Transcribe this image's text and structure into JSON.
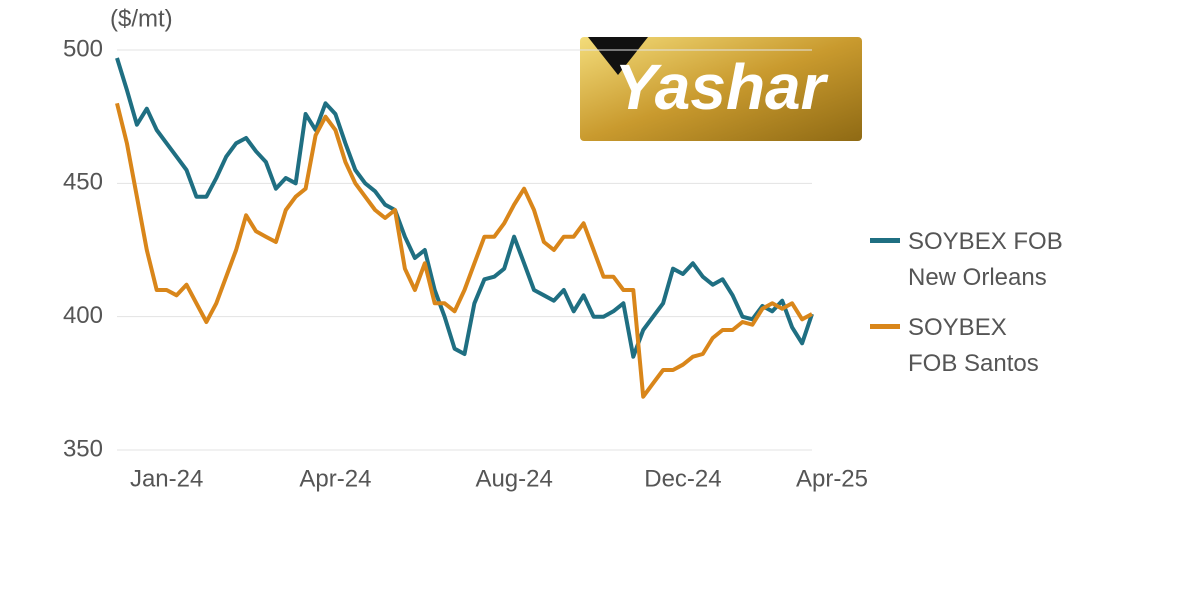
{
  "logo_text": "Yashar",
  "chart_data": {
    "type": "line",
    "y_label": "($/mt)",
    "categories": [
      null,
      null,
      null,
      null,
      null,
      "Jan-24",
      null,
      null,
      null,
      null,
      null,
      null,
      null,
      null,
      null,
      null,
      null,
      null,
      null,
      null,
      null,
      null,
      "Apr-24",
      null,
      null,
      null,
      null,
      null,
      null,
      null,
      null,
      null,
      null,
      null,
      null,
      null,
      null,
      null,
      null,
      null,
      "Aug-24",
      null,
      null,
      null,
      null,
      null,
      null,
      null,
      null,
      null,
      null,
      null,
      null,
      null,
      null,
      null,
      null,
      "Dec-24",
      null,
      null,
      null,
      null,
      null,
      null,
      null,
      null,
      null,
      null,
      null,
      null,
      "Apr-25"
    ],
    "series": [
      {
        "name": "SOYBEX FOB New Orleans",
        "color": "#1f6f82",
        "values": [
          497,
          485,
          472,
          478,
          470,
          465,
          460,
          455,
          445,
          445,
          452,
          460,
          465,
          467,
          462,
          458,
          448,
          452,
          450,
          476,
          470,
          480,
          476,
          465,
          455,
          450,
          447,
          442,
          440,
          430,
          422,
          425,
          410,
          400,
          388,
          386,
          405,
          414,
          415,
          418,
          430,
          420,
          410,
          408,
          406,
          410,
          402,
          408,
          400,
          400,
          402,
          405,
          385,
          395,
          400,
          405,
          418,
          416,
          420,
          415,
          412,
          414,
          408,
          400,
          399,
          404,
          402,
          406,
          396,
          390,
          401
        ]
      },
      {
        "name": "SOYBEX FOB Santos",
        "color": "#d9861a",
        "values": [
          480,
          465,
          445,
          425,
          410,
          410,
          408,
          412,
          405,
          398,
          405,
          415,
          425,
          438,
          432,
          430,
          428,
          440,
          445,
          448,
          468,
          475,
          470,
          458,
          450,
          445,
          440,
          437,
          440,
          418,
          410,
          420,
          405,
          405,
          402,
          410,
          420,
          430,
          430,
          435,
          442,
          448,
          440,
          428,
          425,
          430,
          430,
          435,
          425,
          415,
          415,
          410,
          410,
          370,
          375,
          380,
          380,
          382,
          385,
          386,
          392,
          395,
          395,
          398,
          397,
          403,
          405,
          403,
          405,
          399,
          401
        ]
      }
    ],
    "ylim": [
      350,
      500
    ],
    "yticks": [
      350,
      400,
      450,
      500
    ],
    "grid": true,
    "legend": "right"
  }
}
